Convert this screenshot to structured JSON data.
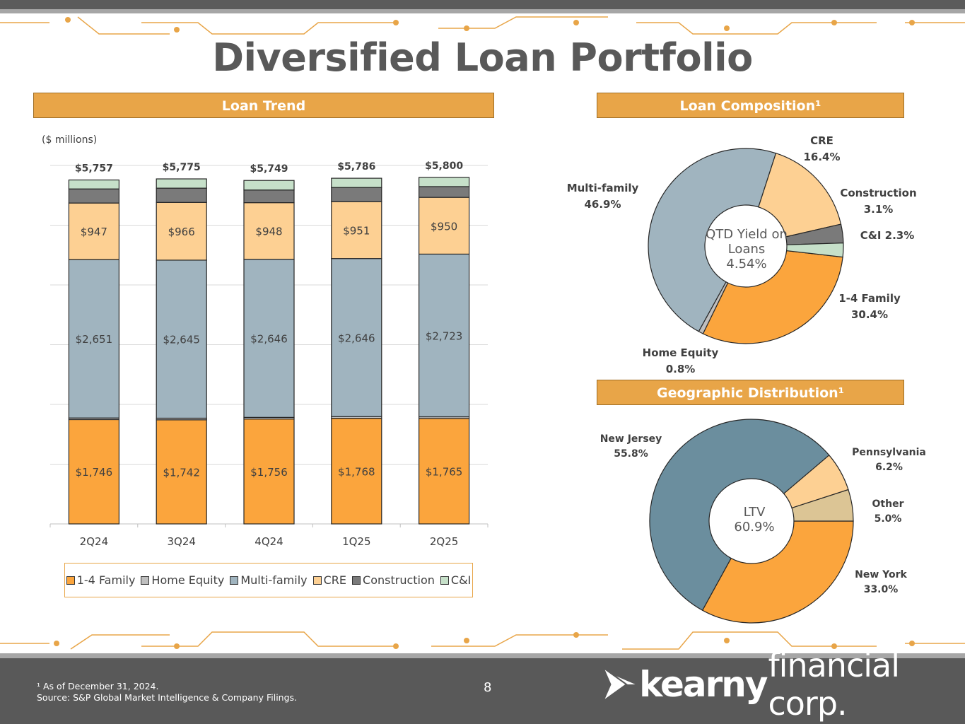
{
  "title": "Diversified Loan Portfolio",
  "loan_trend": {
    "header": "Loan Trend",
    "units": "($ millions)"
  },
  "loan_composition": {
    "header": "Loan Composition¹",
    "center_line1": "QTD Yield on",
    "center_line2": "Loans",
    "center_line3": "4.54%"
  },
  "geographic": {
    "header": "Geographic Distribution¹",
    "center_line1": "LTV",
    "center_line2": "60.9%"
  },
  "footer": {
    "footnote1": "¹ As of December 31, 2024.",
    "footnote2": "Source: S&P Global Market Intelligence & Company Filings.",
    "page_number": "8",
    "logo_bold": "kearny",
    "logo_light": "financial corp."
  },
  "colors": {
    "family14": "#fba53d",
    "home_equity": "#bfbfbf",
    "multi_family": "#a0b4bf",
    "cre": "#fdd093",
    "construction": "#7a7a7a",
    "ci": "#c6e0c9",
    "new_jersey": "#6b8e9e",
    "pennsylvania": "#fdd093",
    "other": "#dcc595",
    "new_york": "#fba53d",
    "accent": "#e8a548",
    "footer": "#595959"
  },
  "chart_data": [
    {
      "type": "bar",
      "stacked": true,
      "categories": [
        "2Q24",
        "3Q24",
        "4Q24",
        "1Q25",
        "2Q25"
      ],
      "totals": [
        "$5,757",
        "$5,775",
        "$5,749",
        "$5,786",
        "$5,800"
      ],
      "ylim": [
        0,
        6000
      ],
      "grid": true,
      "legend": "bottom",
      "series": [
        {
          "name": "1-4 Family",
          "color": "#fba53d",
          "values": [
            1746,
            1742,
            1756,
            1768,
            1765
          ],
          "labels": [
            "$1,746",
            "$1,742",
            "$1,756",
            "$1,768",
            "$1,765"
          ]
        },
        {
          "name": "Home Equity",
          "color": "#bfbfbf",
          "values": [
            27,
            28,
            27,
            28,
            28
          ],
          "labels": [
            "",
            "",
            "",
            "",
            ""
          ]
        },
        {
          "name": "Multi-family",
          "color": "#a0b4bf",
          "values": [
            2651,
            2645,
            2646,
            2646,
            2723
          ],
          "labels": [
            "$2,651",
            "$2,645",
            "$2,646",
            "$2,646",
            "$2,723"
          ]
        },
        {
          "name": "CRE",
          "color": "#fdd093",
          "values": [
            947,
            966,
            948,
            951,
            950
          ],
          "labels": [
            "$947",
            "$966",
            "$948",
            "$951",
            "$950"
          ]
        },
        {
          "name": "Construction",
          "color": "#7a7a7a",
          "values": [
            236,
            239,
            212,
            238,
            180
          ],
          "labels": [
            "",
            "",
            "",
            "",
            ""
          ]
        },
        {
          "name": "C&I",
          "color": "#c6e0c9",
          "values": [
            150,
            155,
            160,
            155,
            154
          ],
          "labels": [
            "",
            "",
            "",
            "",
            ""
          ]
        }
      ]
    },
    {
      "type": "pie",
      "donut": true,
      "slices": [
        {
          "label": "1-4 Family",
          "value": 30.4,
          "display": "30.4%",
          "color": "#fba53d"
        },
        {
          "label": "Home Equity",
          "value": 0.8,
          "display": "0.8%",
          "color": "#bfbfbf"
        },
        {
          "label": "Multi-family",
          "value": 46.9,
          "display": "46.9%",
          "color": "#a0b4bf"
        },
        {
          "label": "CRE",
          "value": 16.4,
          "display": "16.4%",
          "color": "#fdd093"
        },
        {
          "label": "Construction",
          "value": 3.1,
          "display": "3.1%",
          "color": "#7a7a7a"
        },
        {
          "label": "C&I",
          "value": 2.3,
          "display": "2.3%",
          "color": "#c6e0c9"
        }
      ]
    },
    {
      "type": "pie",
      "donut": true,
      "slices": [
        {
          "label": "New York",
          "value": 33.0,
          "display": "33.0%",
          "color": "#fba53d"
        },
        {
          "label": "New Jersey",
          "value": 55.8,
          "display": "55.8%",
          "color": "#6b8e9e"
        },
        {
          "label": "Pennsylvania",
          "value": 6.2,
          "display": "6.2%",
          "color": "#fdd093"
        },
        {
          "label": "Other",
          "value": 5.0,
          "display": "5.0%",
          "color": "#dcc595"
        }
      ]
    }
  ]
}
